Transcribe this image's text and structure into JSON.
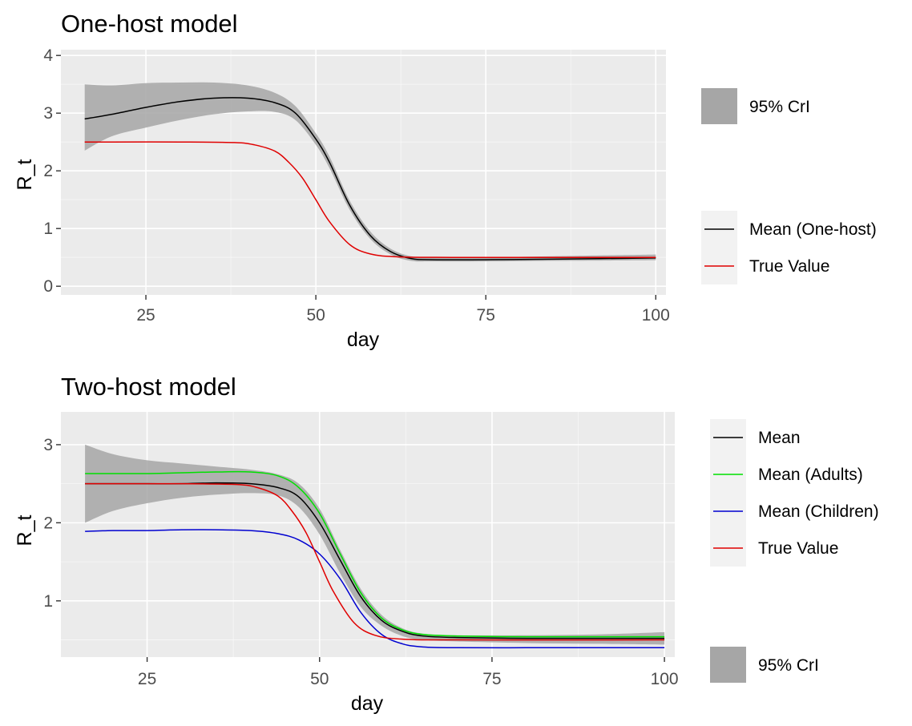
{
  "colors": {
    "panel_bg": "#ebebeb",
    "grid_major": "#ffffff",
    "ribbon": "#a6a6a6",
    "legend_key_bg": "#f2f2f2",
    "mean": "#000000",
    "mean_adults": "#00e000",
    "mean_children": "#0000d0",
    "true_value": "#e00000"
  },
  "chart_data": [
    {
      "type": "line",
      "title": "One-host model",
      "xlabel": "day",
      "ylabel": "R_t",
      "xlim": [
        12.5,
        101.5
      ],
      "ylim": [
        -0.15,
        4.1
      ],
      "x_ticks": [
        25,
        50,
        75,
        100
      ],
      "x_tick_labels": [
        "25",
        "50",
        "75",
        "100"
      ],
      "y_ticks": [
        0,
        1,
        2,
        3,
        4
      ],
      "y_tick_labels": [
        "0",
        "1",
        "2",
        "3",
        "4"
      ],
      "grid": true,
      "ribbon": {
        "name": "95% CrI",
        "x": [
          16,
          20,
          25,
          30,
          35,
          40,
          44,
          47,
          50,
          52,
          55,
          58,
          61,
          64,
          67,
          75,
          85,
          100
        ],
        "lower": [
          2.35,
          2.6,
          2.75,
          2.88,
          2.98,
          3.03,
          3.02,
          2.88,
          2.45,
          2.05,
          1.32,
          0.82,
          0.55,
          0.44,
          0.43,
          0.43,
          0.44,
          0.45
        ],
        "upper": [
          3.5,
          3.48,
          3.52,
          3.53,
          3.53,
          3.48,
          3.35,
          3.12,
          2.65,
          2.25,
          1.48,
          0.95,
          0.65,
          0.52,
          0.5,
          0.5,
          0.52,
          0.55
        ]
      },
      "series": [
        {
          "name": "Mean (One-host)",
          "color_key": "mean",
          "x": [
            16,
            20,
            25,
            30,
            35,
            40,
            44,
            47,
            50,
            52,
            55,
            58,
            61,
            64,
            67,
            75,
            85,
            100
          ],
          "values": [
            2.9,
            2.98,
            3.1,
            3.2,
            3.26,
            3.26,
            3.18,
            3.0,
            2.55,
            2.15,
            1.4,
            0.88,
            0.6,
            0.48,
            0.46,
            0.46,
            0.47,
            0.49
          ]
        },
        {
          "name": "True Value",
          "color_key": "true_value",
          "x": [
            16,
            20,
            30,
            38,
            41,
            44,
            46,
            48,
            50,
            52,
            55,
            58,
            62,
            70,
            100
          ],
          "values": [
            2.5,
            2.5,
            2.5,
            2.49,
            2.45,
            2.34,
            2.15,
            1.88,
            1.5,
            1.12,
            0.72,
            0.56,
            0.51,
            0.5,
            0.5
          ]
        }
      ],
      "legends": [
        {
          "items": [
            {
              "label": "95% CrI",
              "kind": "fill",
              "color_key": "ribbon"
            }
          ]
        },
        {
          "items": [
            {
              "label": "Mean (One-host)",
              "kind": "line",
              "color_key": "mean"
            },
            {
              "label": "True Value",
              "kind": "line",
              "color_key": "true_value"
            }
          ]
        }
      ],
      "legend_position": "right"
    },
    {
      "type": "line",
      "title": "Two-host model",
      "xlabel": "day",
      "ylabel": "R_t",
      "xlim": [
        12.5,
        101.5
      ],
      "ylim": [
        0.28,
        3.42
      ],
      "x_ticks": [
        25,
        50,
        75,
        100
      ],
      "x_tick_labels": [
        "25",
        "50",
        "75",
        "100"
      ],
      "y_ticks": [
        1,
        2,
        3
      ],
      "y_tick_labels": [
        "1",
        "2",
        "3"
      ],
      "grid": true,
      "ribbon": {
        "name": "95% CrI",
        "x": [
          16,
          20,
          25,
          30,
          35,
          40,
          44,
          47,
          50,
          53,
          56,
          59,
          62,
          65,
          70,
          80,
          90,
          100
        ],
        "lower": [
          2.0,
          2.15,
          2.25,
          2.32,
          2.36,
          2.38,
          2.35,
          2.2,
          1.85,
          1.35,
          0.92,
          0.68,
          0.55,
          0.5,
          0.48,
          0.46,
          0.45,
          0.44
        ],
        "upper": [
          3.0,
          2.88,
          2.8,
          2.76,
          2.72,
          2.68,
          2.62,
          2.5,
          2.18,
          1.65,
          1.15,
          0.82,
          0.65,
          0.58,
          0.56,
          0.56,
          0.57,
          0.6
        ]
      },
      "series": [
        {
          "name": "Mean",
          "color_key": "mean",
          "x": [
            16,
            20,
            25,
            30,
            35,
            40,
            44,
            47,
            50,
            53,
            56,
            59,
            62,
            65,
            70,
            80,
            90,
            100
          ],
          "values": [
            2.5,
            2.5,
            2.5,
            2.5,
            2.51,
            2.5,
            2.45,
            2.33,
            2.0,
            1.52,
            1.05,
            0.75,
            0.61,
            0.55,
            0.53,
            0.52,
            0.52,
            0.52
          ]
        },
        {
          "name": "Mean (Adults)",
          "color_key": "mean_adults",
          "x": [
            16,
            20,
            25,
            30,
            35,
            40,
            44,
            47,
            50,
            53,
            56,
            59,
            62,
            65,
            70,
            80,
            90,
            100
          ],
          "values": [
            2.63,
            2.63,
            2.63,
            2.64,
            2.65,
            2.65,
            2.6,
            2.45,
            2.12,
            1.6,
            1.1,
            0.78,
            0.63,
            0.57,
            0.55,
            0.54,
            0.54,
            0.54
          ]
        },
        {
          "name": "Mean (Children)",
          "color_key": "mean_children",
          "x": [
            16,
            20,
            25,
            30,
            35,
            40,
            44,
            47,
            50,
            53,
            56,
            59,
            62,
            65,
            70,
            80,
            90,
            100
          ],
          "values": [
            1.89,
            1.9,
            1.9,
            1.91,
            1.91,
            1.9,
            1.86,
            1.78,
            1.6,
            1.28,
            0.85,
            0.57,
            0.45,
            0.41,
            0.4,
            0.4,
            0.4,
            0.4
          ]
        },
        {
          "name": "True Value",
          "color_key": "true_value",
          "x": [
            16,
            20,
            30,
            38,
            41,
            44,
            46,
            48,
            50,
            52,
            55,
            58,
            62,
            70,
            100
          ],
          "values": [
            2.5,
            2.5,
            2.5,
            2.49,
            2.45,
            2.34,
            2.15,
            1.88,
            1.5,
            1.12,
            0.72,
            0.56,
            0.51,
            0.5,
            0.5
          ]
        }
      ],
      "legends": [
        {
          "items": [
            {
              "label": "Mean",
              "kind": "line",
              "color_key": "mean"
            },
            {
              "label": "Mean (Adults)",
              "kind": "line",
              "color_key": "mean_adults"
            },
            {
              "label": "Mean (Children)",
              "kind": "line",
              "color_key": "mean_children"
            },
            {
              "label": "True Value",
              "kind": "line",
              "color_key": "true_value"
            }
          ]
        },
        {
          "items": [
            {
              "label": "95% CrI",
              "kind": "fill",
              "color_key": "ribbon"
            }
          ]
        }
      ],
      "legend_position": "right"
    }
  ]
}
